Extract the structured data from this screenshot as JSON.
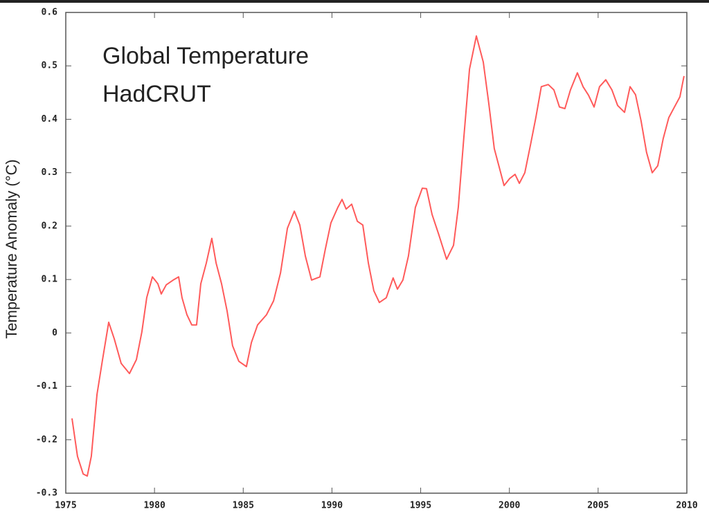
{
  "chart_data": {
    "type": "line",
    "annotations": [
      "Global Temperature",
      "HadCRUT"
    ],
    "ylabel": "Temperature Anomaly (°C)",
    "color": "#ff5a5a",
    "x": [
      1975.35,
      1975.66,
      1975.98,
      1976.21,
      1976.44,
      1976.76,
      1977.07,
      1977.42,
      1977.73,
      1978.12,
      1978.59,
      1978.98,
      1979.29,
      1979.56,
      1979.88,
      1980.19,
      1980.38,
      1980.66,
      1981.05,
      1981.36,
      1981.55,
      1981.83,
      1982.1,
      1982.37,
      1982.61,
      1982.92,
      1983.23,
      1983.47,
      1983.78,
      1984.09,
      1984.4,
      1984.75,
      1985.18,
      1985.46,
      1985.81,
      1986.31,
      1986.71,
      1987.1,
      1987.49,
      1987.88,
      1988.19,
      1988.5,
      1988.85,
      1989.32,
      1989.63,
      1989.94,
      1990.33,
      1990.57,
      1990.8,
      1991.11,
      1991.43,
      1991.74,
      1992.05,
      1992.36,
      1992.67,
      1993.06,
      1993.45,
      1993.69,
      1994.0,
      1994.31,
      1994.7,
      1995.09,
      1995.33,
      1995.64,
      1996.03,
      1996.46,
      1996.85,
      1997.12,
      1997.43,
      1997.75,
      1998.14,
      1998.53,
      1998.84,
      1999.15,
      1999.46,
      1999.7,
      2000.01,
      2000.32,
      2000.56,
      2000.87,
      2001.18,
      2001.49,
      2001.8,
      2002.19,
      2002.51,
      2002.82,
      2003.13,
      2003.44,
      2003.83,
      2004.15,
      2004.46,
      2004.77,
      2005.08,
      2005.43,
      2005.78,
      2006.1,
      2006.49,
      2006.8,
      2007.11,
      2007.42,
      2007.73,
      2008.05,
      2008.36,
      2008.67,
      2008.98,
      2009.3,
      2009.61,
      2009.84
    ],
    "values": [
      -0.16,
      -0.231,
      -0.264,
      -0.268,
      -0.231,
      -0.115,
      -0.05,
      0.02,
      -0.011,
      -0.057,
      -0.076,
      -0.05,
      0.002,
      0.066,
      0.105,
      0.092,
      0.073,
      0.09,
      0.099,
      0.105,
      0.066,
      0.034,
      0.015,
      0.015,
      0.092,
      0.131,
      0.177,
      0.131,
      0.092,
      0.041,
      -0.024,
      -0.053,
      -0.063,
      -0.018,
      0.015,
      0.034,
      0.06,
      0.112,
      0.196,
      0.228,
      0.202,
      0.144,
      0.099,
      0.105,
      0.157,
      0.206,
      0.235,
      0.25,
      0.232,
      0.241,
      0.209,
      0.202,
      0.131,
      0.079,
      0.057,
      0.066,
      0.103,
      0.082,
      0.099,
      0.144,
      0.235,
      0.271,
      0.27,
      0.222,
      0.183,
      0.138,
      0.164,
      0.235,
      0.364,
      0.494,
      0.556,
      0.507,
      0.429,
      0.345,
      0.306,
      0.276,
      0.289,
      0.297,
      0.28,
      0.3,
      0.351,
      0.403,
      0.461,
      0.465,
      0.455,
      0.423,
      0.42,
      0.455,
      0.487,
      0.461,
      0.445,
      0.423,
      0.461,
      0.474,
      0.455,
      0.426,
      0.413,
      0.461,
      0.446,
      0.397,
      0.338,
      0.3,
      0.313,
      0.364,
      0.403,
      0.423,
      0.442,
      0.481
    ],
    "xlim": [
      1975,
      2010
    ],
    "xticks": [
      1975,
      1980,
      1985,
      1990,
      1995,
      2000,
      2005,
      2010
    ],
    "ylim": [
      -0.3,
      0.6
    ],
    "yticks": [
      -0.3,
      -0.2,
      -0.1,
      0,
      0.1,
      0.2,
      0.3,
      0.4,
      0.5,
      0.6
    ],
    "grid": false
  }
}
